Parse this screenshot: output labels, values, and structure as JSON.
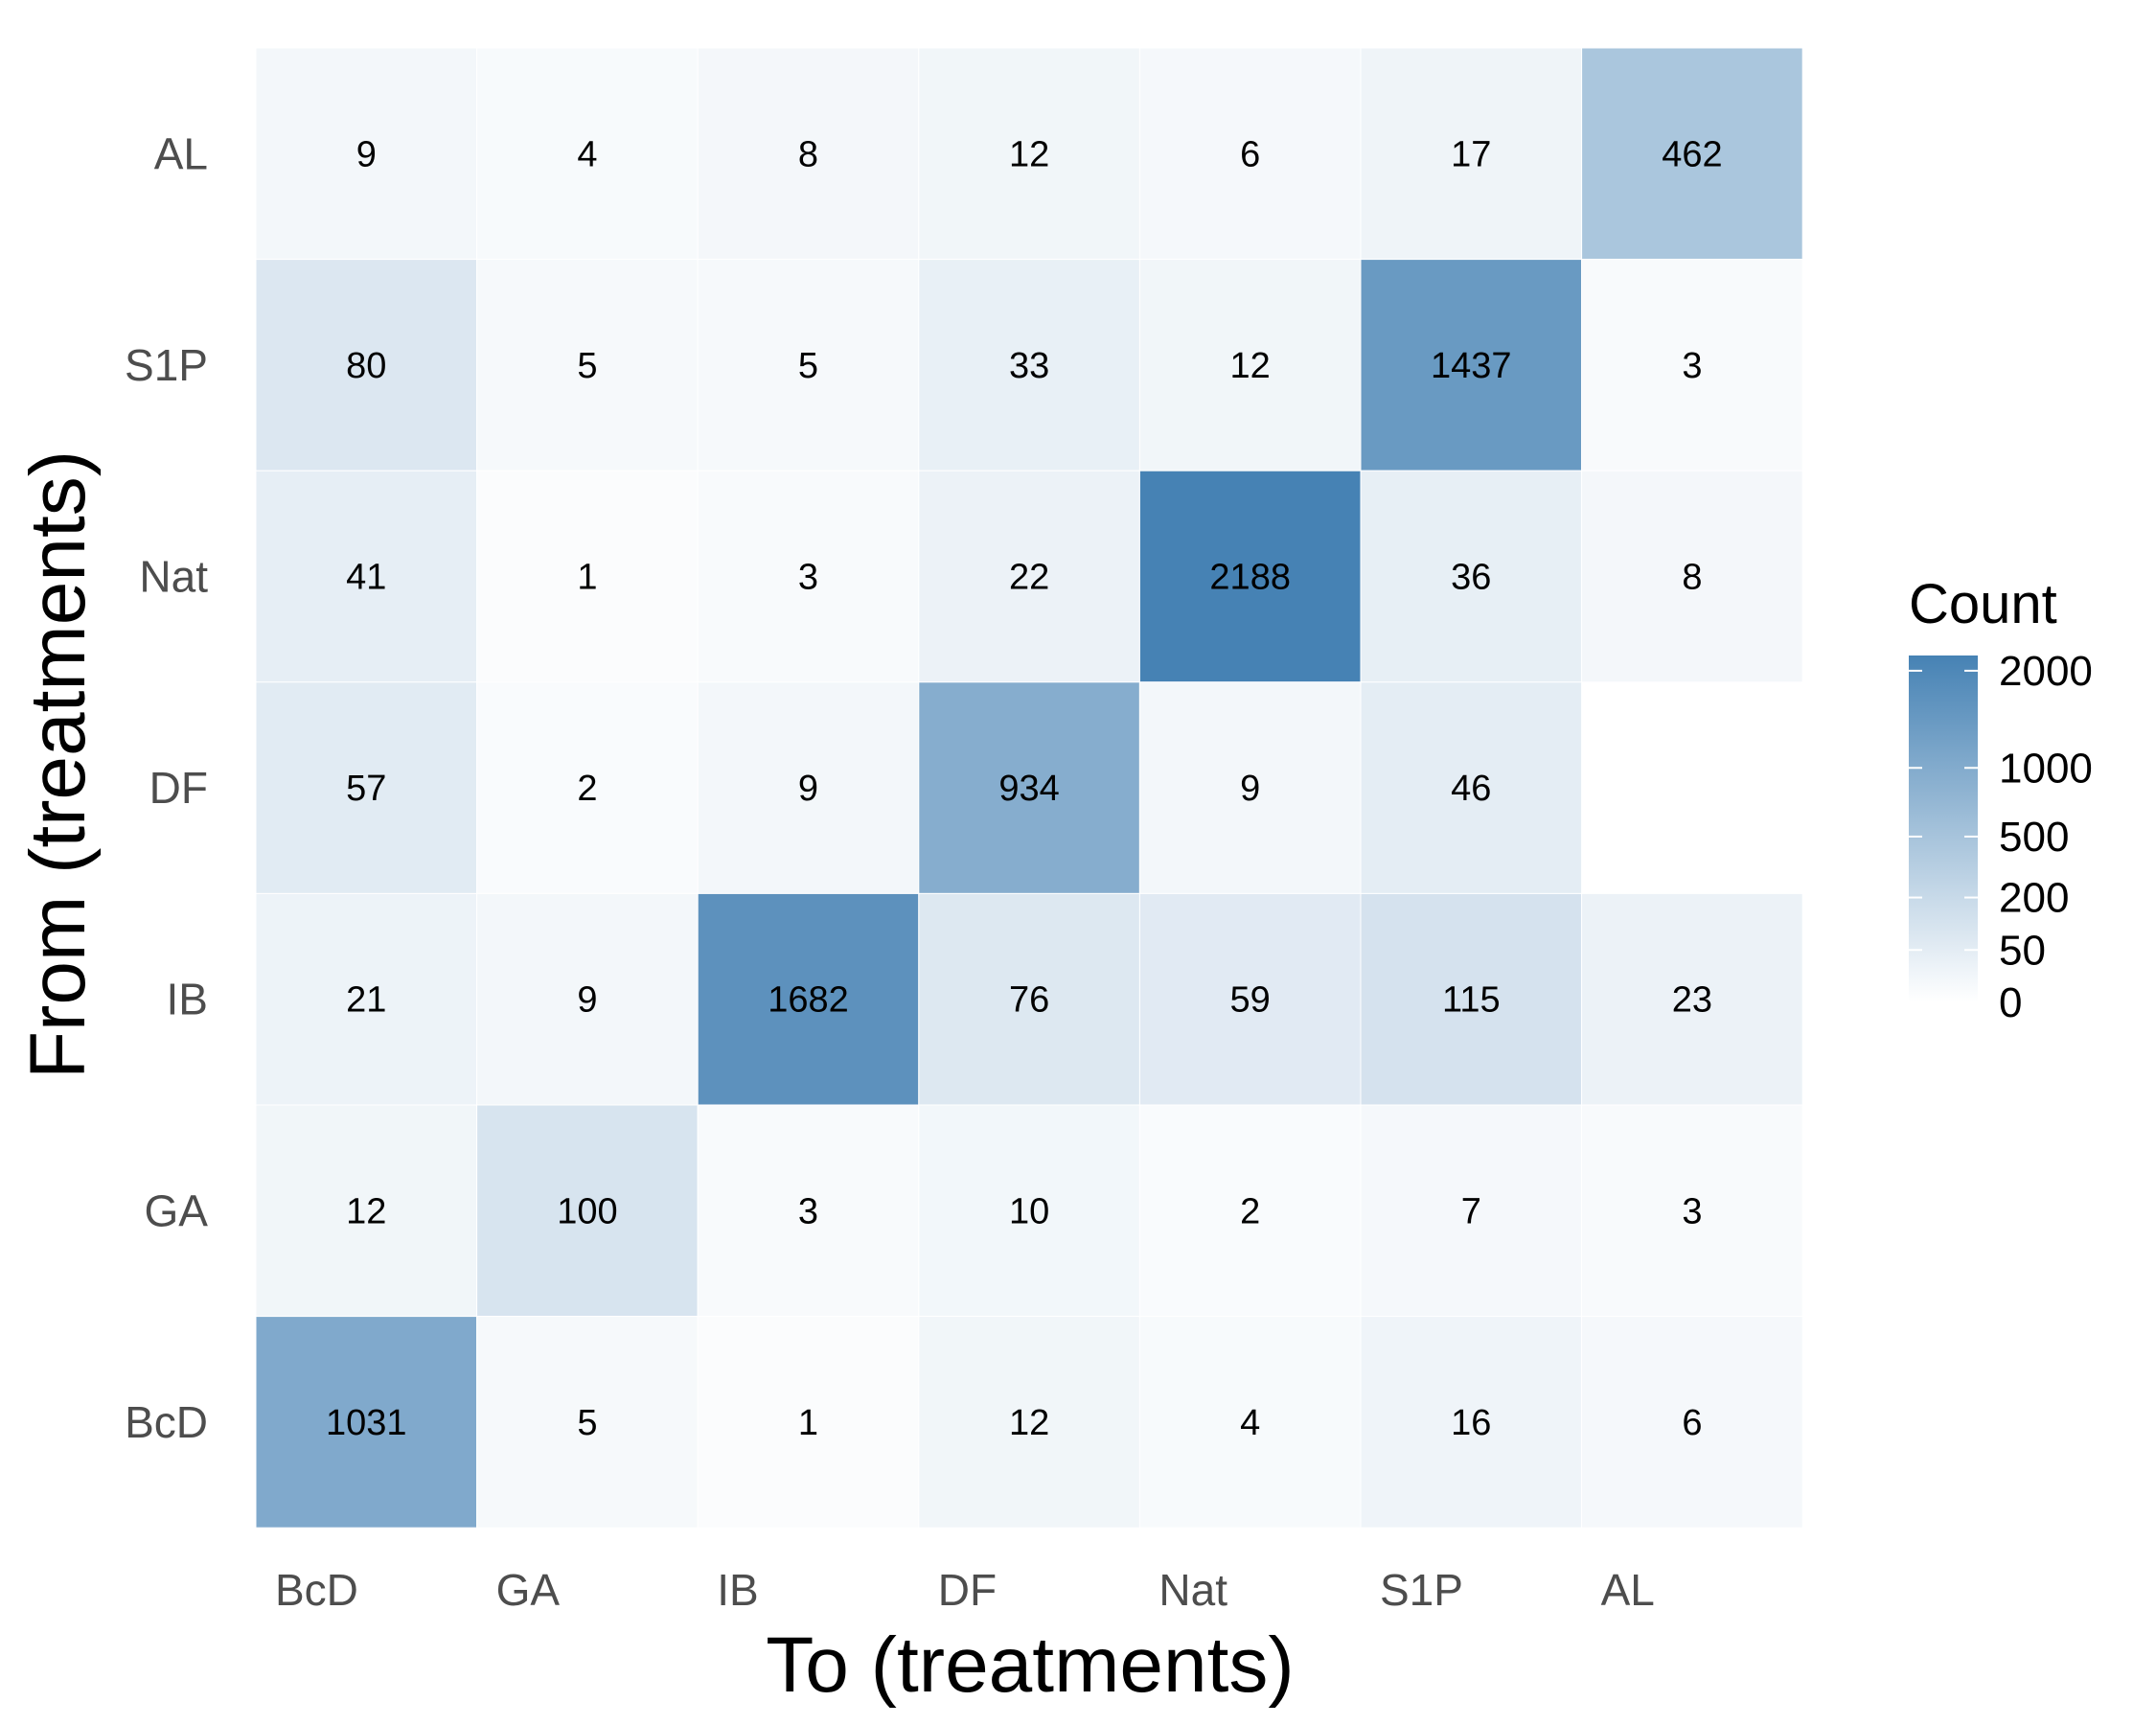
{
  "chart_data": {
    "type": "heatmap",
    "xlabel": "To (treatments)",
    "ylabel": "From (treatments)",
    "x_categories": [
      "BcD",
      "GA",
      "IB",
      "DF",
      "Nat",
      "S1P",
      "AL"
    ],
    "y_categories_top_to_bottom": [
      "AL",
      "S1P",
      "Nat",
      "DF",
      "IB",
      "GA",
      "BcD"
    ],
    "values": [
      [
        9,
        4,
        8,
        12,
        6,
        17,
        462
      ],
      [
        80,
        5,
        5,
        33,
        12,
        1437,
        3
      ],
      [
        41,
        1,
        3,
        22,
        2188,
        36,
        8
      ],
      [
        57,
        2,
        9,
        934,
        9,
        46,
        null
      ],
      [
        21,
        9,
        1682,
        76,
        59,
        115,
        23
      ],
      [
        12,
        100,
        3,
        10,
        2,
        7,
        3
      ],
      [
        1031,
        5,
        1,
        12,
        4,
        16,
        6
      ]
    ],
    "legend": {
      "title": "Count",
      "breaks": [
        0,
        50,
        200,
        500,
        1000,
        2000
      ],
      "break_labels": [
        "0",
        "50",
        "200",
        "500",
        "1000",
        "2000"
      ],
      "scale": "sqrt",
      "limits": [
        0,
        2188
      ],
      "low_color": "#ffffff",
      "high_color": "#4682b4",
      "position": "right"
    },
    "grid": false
  }
}
